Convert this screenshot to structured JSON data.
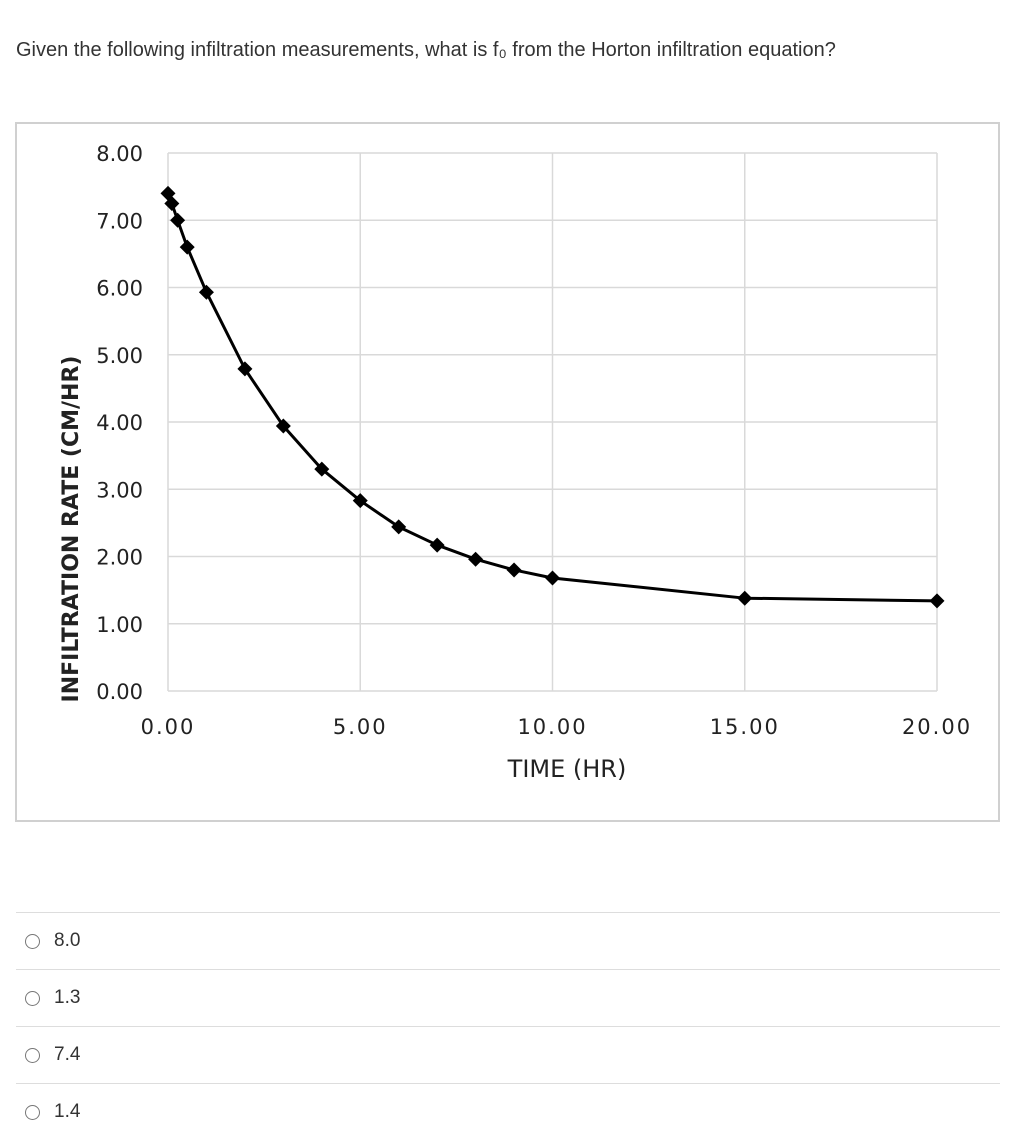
{
  "question": "Given the following infiltration measurements, what is f₀ from the Horton infiltration equation?",
  "chart_data": {
    "type": "line",
    "x_label": "TIME (HR)",
    "y_label": "INFILTRATION RATE (CM/HR)",
    "x": [
      0,
      0.1,
      0.25,
      0.5,
      1,
      2,
      3,
      4,
      5,
      6,
      7,
      8,
      9,
      10,
      15,
      20
    ],
    "values": [
      7.4,
      7.25,
      7.0,
      6.6,
      5.93,
      4.79,
      3.94,
      3.3,
      2.83,
      2.44,
      2.17,
      1.96,
      1.8,
      1.68,
      1.38,
      1.34
    ],
    "color": "#000000",
    "markers": true,
    "grid": true,
    "xlim": [
      0,
      20
    ],
    "ylim": [
      0,
      8
    ],
    "xticks": [
      {
        "value": 0,
        "label": "0.00"
      },
      {
        "value": 5,
        "label": "5.00"
      },
      {
        "value": 10,
        "label": "10.00"
      },
      {
        "value": 15,
        "label": "15.00"
      },
      {
        "value": 20,
        "label": "20.00"
      }
    ],
    "yticks": [
      {
        "value": 0,
        "label": "0.00"
      },
      {
        "value": 1,
        "label": "1.00"
      },
      {
        "value": 2,
        "label": "2.00"
      },
      {
        "value": 3,
        "label": "3.00"
      },
      {
        "value": 4,
        "label": "4.00"
      },
      {
        "value": 5,
        "label": "5.00"
      },
      {
        "value": 6,
        "label": "6.00"
      },
      {
        "value": 7,
        "label": "7.00"
      },
      {
        "value": 8,
        "label": "8.00"
      }
    ]
  },
  "options": [
    "8.0",
    "1.3",
    "7.4",
    "1.4"
  ]
}
